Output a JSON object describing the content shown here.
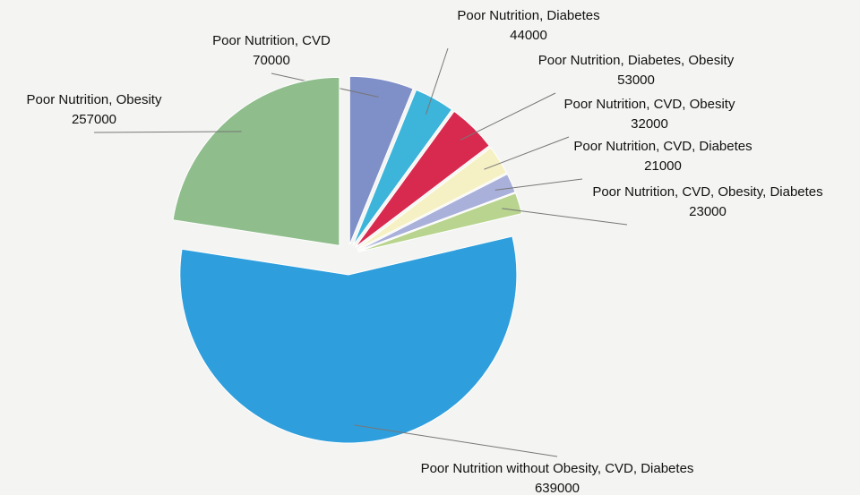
{
  "chart_data": {
    "type": "pie",
    "labels": [
      "Poor Nutrition, CVD",
      "Poor Nutrition, Diabetes",
      "Poor Nutrition, Diabetes, Obesity",
      "Poor Nutrition, CVD, Obesity",
      "Poor Nutrition, CVD, Diabetes",
      "Poor Nutrition, CVD, Obesity, Diabetes",
      "Poor Nutrition without Obesity, CVD, Diabetes",
      "Poor Nutrition, Obesity"
    ],
    "values": [
      70000,
      44000,
      53000,
      32000,
      21000,
      23000,
      639000,
      257000
    ],
    "colors": [
      "#7f8fc8",
      "#3db4da",
      "#d82a4f",
      "#f6f1c4",
      "#a9b0da",
      "#b8d48e",
      "#2f9edc",
      "#8fbd8c"
    ]
  }
}
